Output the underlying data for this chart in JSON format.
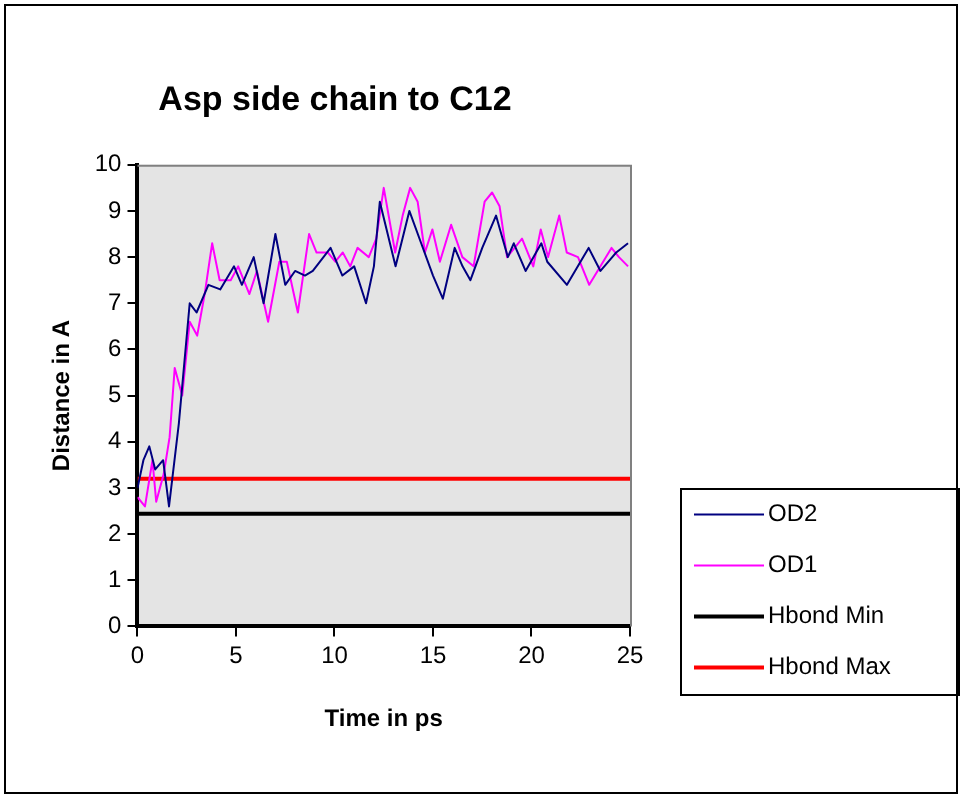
{
  "chart_data": {
    "type": "line",
    "title": "Asp side chain to C12",
    "xlabel": "Time in ps",
    "ylabel": "Distance in A",
    "xlim": [
      0,
      25
    ],
    "xticks": [
      0,
      5,
      10,
      15,
      20,
      25
    ],
    "ylim": [
      0,
      10
    ],
    "yticks": [
      0,
      1,
      2,
      3,
      4,
      5,
      6,
      7,
      8,
      9,
      10
    ],
    "grid": false,
    "legend": "right",
    "marker": "none",
    "line_style": "solid",
    "series": [
      {
        "name": "OD2",
        "color": "#000080",
        "x": [
          0,
          0.3,
          0.6,
          0.9,
          1.3,
          1.6,
          2.1,
          2.65,
          3.0,
          3.6,
          4.2,
          4.9,
          5.3,
          5.9,
          6.4,
          7.0,
          7.5,
          8.0,
          8.5,
          8.9,
          9.8,
          10.4,
          11.0,
          11.6,
          12.0,
          12.3,
          12.7,
          13.1,
          13.8,
          14.4,
          15.0,
          15.5,
          16.1,
          16.5,
          16.9,
          17.5,
          18.2,
          18.4,
          18.8,
          19.1,
          19.7,
          20.5,
          20.8,
          21.8,
          22.9,
          23.5,
          24.3,
          24.9
        ],
        "values": [
          3.0,
          3.6,
          3.9,
          3.4,
          3.6,
          2.6,
          4.4,
          7.0,
          6.8,
          7.4,
          7.3,
          7.8,
          7.4,
          8.0,
          7.0,
          8.5,
          7.4,
          7.7,
          7.6,
          7.7,
          8.2,
          7.6,
          7.8,
          7.0,
          7.8,
          9.2,
          8.5,
          7.8,
          9.0,
          8.3,
          7.6,
          7.1,
          8.2,
          7.8,
          7.5,
          8.2,
          8.9,
          8.6,
          8.0,
          8.3,
          7.7,
          8.3,
          7.9,
          7.4,
          8.2,
          7.7,
          8.1,
          8.3
        ]
      },
      {
        "name": "OD1",
        "color": "#ff00ff",
        "x": [
          0,
          0.38,
          0.76,
          0.95,
          1.33,
          1.63,
          1.89,
          2.27,
          2.65,
          3.03,
          3.41,
          3.79,
          4.17,
          4.73,
          5.11,
          5.68,
          6.06,
          6.63,
          7.2,
          7.58,
          8.14,
          8.71,
          9.09,
          9.66,
          10.04,
          10.42,
          10.8,
          11.17,
          11.74,
          12.12,
          12.5,
          13.08,
          13.46,
          13.84,
          14.22,
          14.59,
          14.97,
          15.35,
          15.92,
          16.49,
          17.06,
          17.62,
          18.0,
          18.38,
          18.76,
          19.52,
          20.09,
          20.47,
          20.84,
          21.41,
          21.79,
          22.36,
          22.93,
          23.5,
          24.06,
          24.44,
          24.9
        ],
        "values": [
          2.8,
          2.6,
          3.6,
          2.7,
          3.3,
          4.1,
          5.6,
          5.0,
          6.6,
          6.3,
          7.2,
          8.3,
          7.5,
          7.5,
          7.8,
          7.2,
          7.7,
          6.6,
          7.9,
          7.9,
          6.8,
          8.5,
          8.1,
          8.1,
          7.9,
          8.1,
          7.8,
          8.2,
          8.0,
          8.4,
          9.5,
          8.1,
          8.9,
          9.5,
          9.2,
          8.1,
          8.6,
          7.9,
          8.7,
          8.0,
          7.8,
          9.2,
          9.4,
          9.1,
          8.0,
          8.4,
          7.8,
          8.6,
          8.0,
          8.9,
          8.1,
          8.0,
          7.4,
          7.8,
          8.2,
          8.0,
          7.8
        ]
      }
    ],
    "ref_lines": [
      {
        "axis": "y",
        "value": 2.44,
        "label": "Hbond Min",
        "color": "#000000"
      },
      {
        "axis": "y",
        "value": 3.2,
        "label": "Hbond Max",
        "color": "#ff0000"
      }
    ]
  }
}
